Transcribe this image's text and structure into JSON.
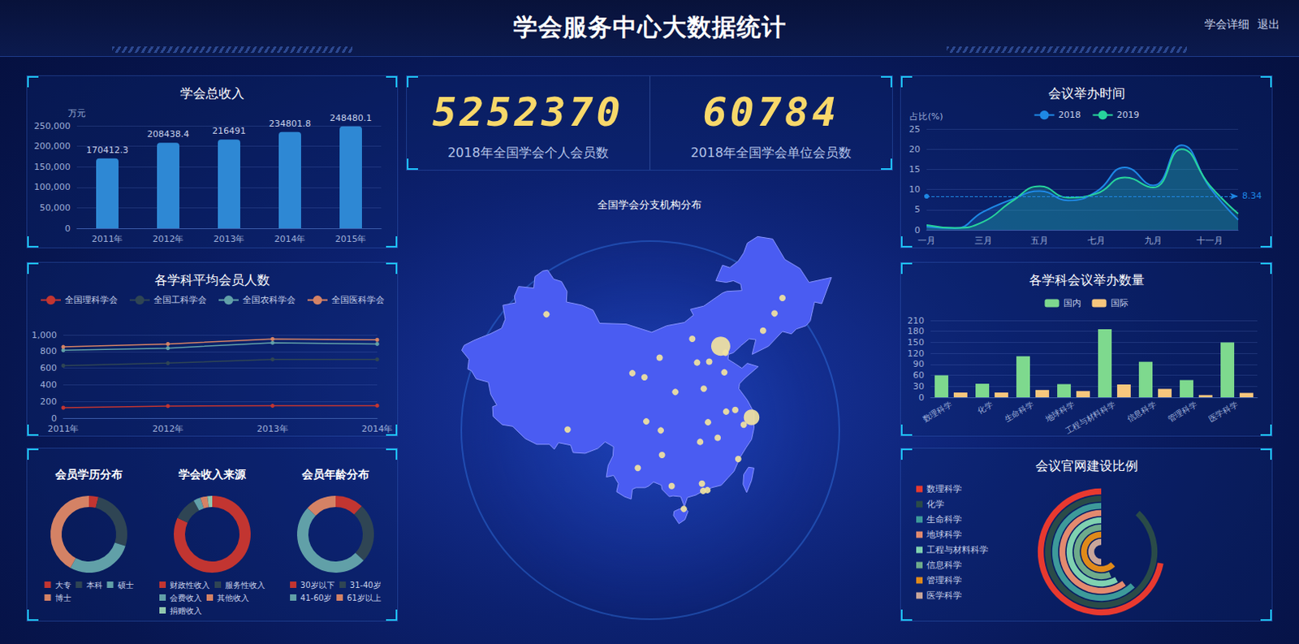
{
  "header": {
    "title": "学会服务中心大数据统计",
    "links": [
      "学会详细",
      "退出"
    ]
  },
  "stats": [
    {
      "value": 5252370,
      "label": "2018年全国学会个人会员数"
    },
    {
      "value": 60784,
      "label": "2018年全国学会单位会员数"
    }
  ],
  "chart_data": [
    {
      "type": "bar",
      "title": "学会总收入",
      "ylabel": "万元",
      "categories": [
        "2011年",
        "2012年",
        "2013年",
        "2014年",
        "2015年"
      ],
      "values": [
        170412.3,
        208438.4,
        216491,
        234801.8,
        248480.1
      ],
      "color": "#2e88d4",
      "ylim": [
        0,
        250000
      ],
      "yticks": [
        0,
        {
          "value": 50000,
          "label": "50,000"
        },
        {
          "value": 100000,
          "label": "100,000"
        },
        {
          "value": 150000,
          "label": "150,000"
        },
        {
          "value": 200000,
          "label": "200,000"
        },
        {
          "value": 250000,
          "label": "250,000"
        }
      ],
      "grid": true,
      "data_labels": true
    },
    {
      "type": "line",
      "title": "各学科平均会员人数",
      "categories": [
        "2011年",
        "2012年",
        "2013年",
        "2014年"
      ],
      "series": [
        {
          "name": "全国理科学会",
          "color": "#c23531",
          "values": [
            125,
            145,
            148,
            150
          ]
        },
        {
          "name": "全国工科学会",
          "color": "#2f4554",
          "values": [
            630,
            660,
            705,
            705
          ]
        },
        {
          "name": "全国农科学会",
          "color": "#61a0a8",
          "values": [
            815,
            840,
            905,
            890
          ]
        },
        {
          "name": "全国医科学会",
          "color": "#d48265",
          "values": [
            855,
            890,
            950,
            940
          ]
        }
      ],
      "ylim": [
        0,
        1000
      ],
      "yticks": [
        0,
        200,
        400,
        600,
        800,
        {
          "value": 1000,
          "label": "1,000"
        }
      ],
      "grid": true,
      "legend": "top",
      "marker": "circle"
    },
    {
      "type": "pie",
      "title": "会员学历分布",
      "categories": [
        "大专",
        "本科",
        "硕士",
        "博士"
      ],
      "values": [
        4,
        26,
        28,
        42
      ],
      "colors": [
        "#c23531",
        "#2f4554",
        "#61a0a8",
        "#d48265"
      ],
      "legend": "bottom"
    },
    {
      "type": "pie",
      "title": "学会收入来源",
      "categories": [
        "财政性收入",
        "服务性收入",
        "会费收入",
        "其他收入",
        "捐赠收入"
      ],
      "values": [
        82,
        10,
        3,
        3,
        2
      ],
      "colors": [
        "#c23531",
        "#2f4554",
        "#61a0a8",
        "#d48265",
        "#91c7ae"
      ],
      "legend": "bottom"
    },
    {
      "type": "pie",
      "title": "会员年龄分布",
      "categories": [
        "30岁以下",
        "31-40岁",
        "41-60岁",
        "61岁以上"
      ],
      "values": [
        12,
        25,
        50,
        13
      ],
      "colors": [
        "#c23531",
        "#2f4554",
        "#61a0a8",
        "#d48265"
      ],
      "legend": "bottom"
    },
    {
      "type": "scatter",
      "title": "全国学会分支机构分布",
      "x": [
        126.6,
        125.3,
        123.4,
        116.4,
        117.2,
        114.5,
        112.5,
        111.7,
        117.0,
        113.6,
        108.9,
        106.3,
        103.8,
        101.8,
        87.6,
        91.1,
        104.1,
        106.5,
        106.7,
        102.7,
        108.3,
        113.3,
        110.3,
        119.3,
        115.9,
        113.0,
        114.3,
        117.3,
        118.8,
        121.5,
        120.2,
        114.2,
        113.5
      ],
      "values": [
        45.8,
        43.9,
        41.8,
        39.9,
        39.1,
        38.0,
        37.9,
        40.8,
        36.7,
        34.7,
        34.3,
        38.5,
        36.1,
        36.6,
        43.8,
        29.7,
        30.7,
        29.6,
        26.6,
        25.0,
        22.8,
        23.1,
        20.0,
        26.1,
        28.7,
        28.2,
        30.6,
        31.9,
        32.1,
        31.2,
        30.3,
        22.3,
        22.2
      ],
      "sizes": [
        1,
        1,
        1,
        9,
        1,
        1,
        1,
        1,
        1,
        1,
        1,
        1,
        1,
        1,
        1,
        1,
        1,
        1,
        1,
        1,
        1,
        1,
        1,
        1,
        1,
        1,
        1,
        1,
        1,
        6,
        1,
        1,
        1
      ],
      "color": "#f1e3a0",
      "xlim": [
        73,
        136
      ],
      "ylim": [
        17,
        55
      ],
      "tick_labels": false
    },
    {
      "type": "line",
      "title": "会议举办时间",
      "ylabel": "占比(%)",
      "categories": [
        "一月",
        null,
        "三月",
        null,
        "五月",
        null,
        "七月",
        null,
        "九月",
        null,
        "十一月",
        null
      ],
      "series": [
        {
          "name": "2018",
          "color": "#1e88e5",
          "values": [
            0.8,
            0.4,
            4.5,
            7.5,
            9.6,
            7.3,
            9.5,
            15.5,
            11,
            21,
            10.5,
            2.5
          ],
          "average": 8.34
        },
        {
          "name": "2019",
          "color": "#27d49c",
          "values": [
            1.2,
            0.5,
            2,
            7,
            10.8,
            8,
            9,
            13,
            10.5,
            20,
            11,
            4
          ]
        }
      ],
      "ylim": [
        0,
        25
      ],
      "yticks": [
        0,
        5,
        10,
        15,
        20,
        25
      ],
      "grid": true,
      "legend": "top",
      "marker": "none"
    },
    {
      "type": "bar",
      "title": "各学科会议举办数量",
      "categories": [
        "数理科学",
        "化学",
        "生命科学",
        "地球科学",
        "工程与材料科学",
        "信息科学",
        "管理科学",
        "医学科学"
      ],
      "series": [
        {
          "name": "国内",
          "color": "#7ed98e",
          "values": [
            60,
            37,
            112,
            36,
            186,
            97,
            47,
            150
          ]
        },
        {
          "name": "国际",
          "color": "#f7c77d",
          "values": [
            13,
            13,
            20,
            17,
            35,
            23,
            6,
            12
          ]
        }
      ],
      "ylim": [
        0,
        210
      ],
      "yticks": [
        0,
        30,
        60,
        90,
        120,
        150,
        180,
        210
      ],
      "grid": true,
      "legend": "top"
    },
    {
      "type": "radialbar",
      "title": "会议官网建设比例",
      "categories": [
        "数理科学",
        "化学",
        "生命科学",
        "地球科学",
        "工程与材料科学",
        "信息科学",
        "管理科学",
        "医学科学"
      ],
      "values": [
        72,
        88,
        62,
        60,
        58,
        56,
        62,
        50
      ],
      "colors": [
        "#e8392f",
        "#2a4b48",
        "#3d9a9a",
        "#e38a6f",
        "#7fd1b0",
        "#6eab8b",
        "#e08a1a",
        "#c9a69a"
      ],
      "ylim": [
        0,
        100
      ],
      "tick_labels": false,
      "legend": "left"
    }
  ]
}
